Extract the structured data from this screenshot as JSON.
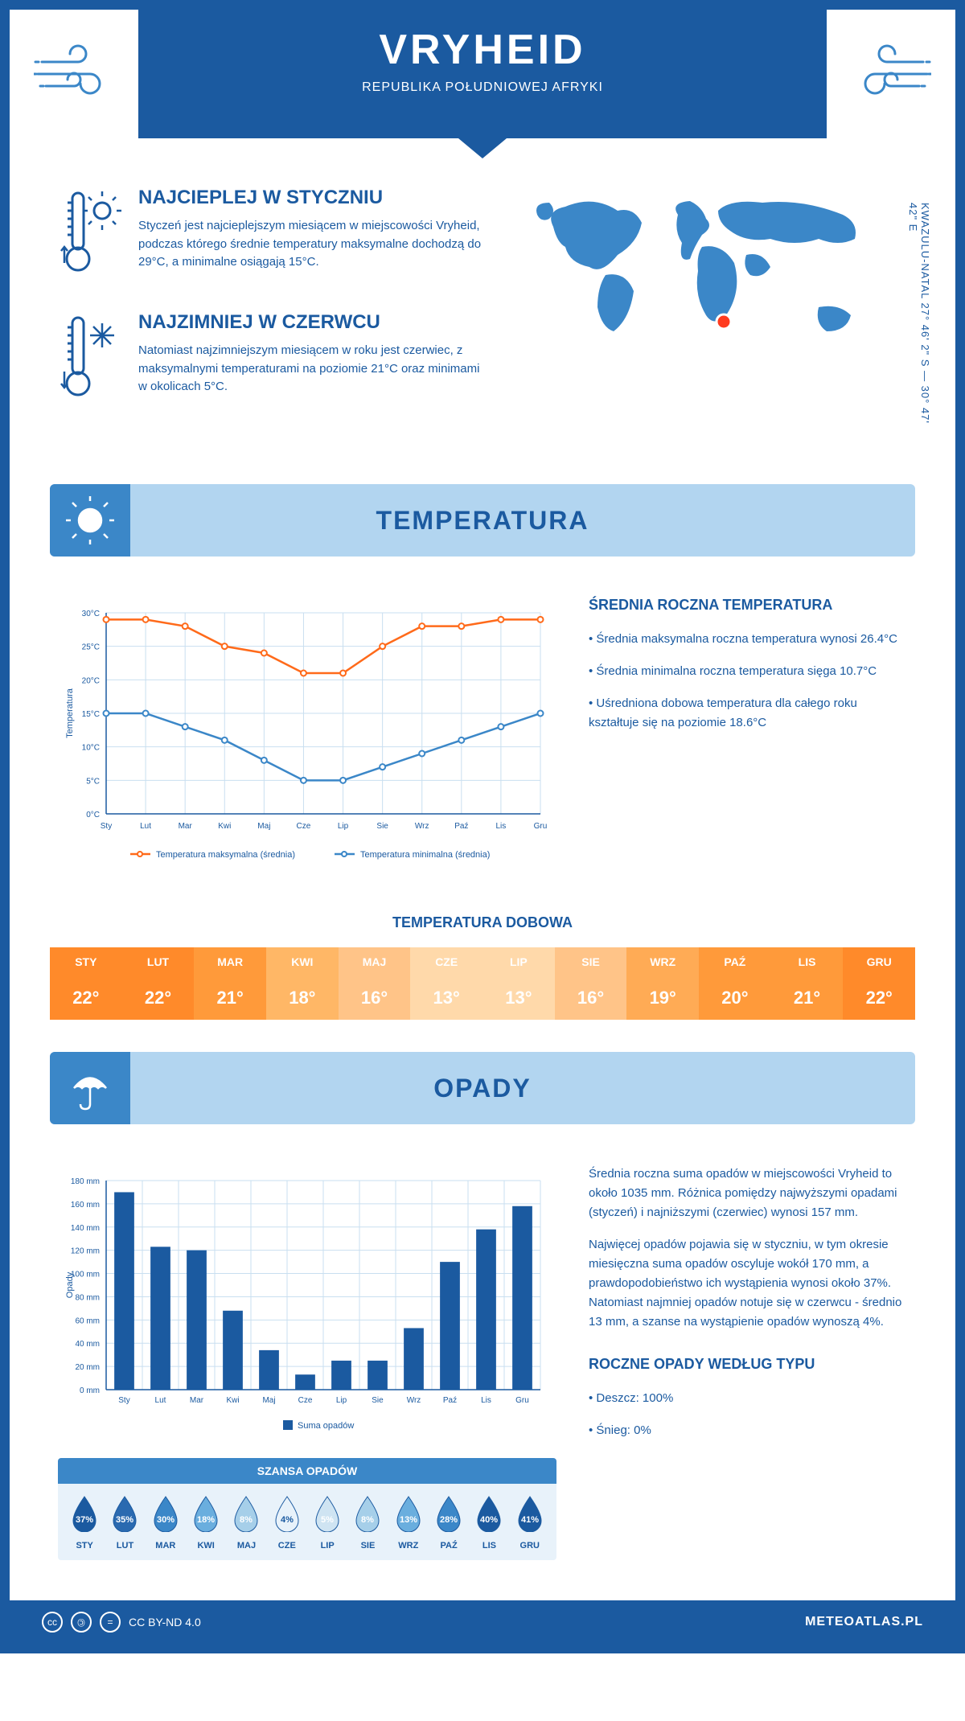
{
  "header": {
    "title": "VRYHEID",
    "subtitle": "REPUBLIKA POŁUDNIOWEJ AFRYKI"
  },
  "coords": "KWAZULU-NATAL    27° 46' 2\" S — 30° 47' 42\" E",
  "warmest": {
    "title": "NAJCIEPLEJ W STYCZNIU",
    "text": "Styczeń jest najcieplejszym miesiącem w miejscowości Vryheid, podczas którego średnie temperatury maksymalne dochodzą do 29°C, a minimalne osiągają 15°C."
  },
  "coldest": {
    "title": "NAJZIMNIEJ W CZERWCU",
    "text": "Natomiast najzimniejszym miesiącem w roku jest czerwiec, z maksymalnymi temperaturami na poziomie 21°C oraz minimami w okolicach 5°C."
  },
  "sections": {
    "temperature": "TEMPERATURA",
    "precipitation": "OPADY"
  },
  "temp_chart": {
    "type": "line",
    "months": [
      "Sty",
      "Lut",
      "Mar",
      "Kwi",
      "Maj",
      "Cze",
      "Lip",
      "Sie",
      "Wrz",
      "Paź",
      "Lis",
      "Gru"
    ],
    "series_max": {
      "label": "Temperatura maksymalna (średnia)",
      "color": "#ff6a1a",
      "values": [
        29,
        29,
        28,
        25,
        24,
        21,
        21,
        25,
        28,
        28,
        29,
        29
      ]
    },
    "series_min": {
      "label": "Temperatura minimalna (średnia)",
      "color": "#3b87c8",
      "values": [
        15,
        15,
        13,
        11,
        8,
        5,
        5,
        7,
        9,
        11,
        13,
        15
      ]
    },
    "ylabel": "Temperatura",
    "ylim": [
      0,
      30
    ],
    "ytick_step": 5,
    "yunit": "°C",
    "grid_color": "#c9dff0",
    "axis_color": "#1b5aa0",
    "label_fontsize": 11,
    "tick_fontsize": 10,
    "line_width": 2.5,
    "marker_size": 3.5,
    "background_color": "#ffffff"
  },
  "temp_text": {
    "title": "ŚREDNIA ROCZNA TEMPERATURA",
    "bullets": [
      "• Średnia maksymalna roczna temperatura wynosi 26.4°C",
      "• Średnia minimalna roczna temperatura sięga 10.7°C",
      "• Uśredniona dobowa temperatura dla całego roku kształtuje się na poziomie 18.6°C"
    ]
  },
  "daily_temp": {
    "title": "TEMPERATURA DOBOWA",
    "months": [
      "STY",
      "LUT",
      "MAR",
      "KWI",
      "MAJ",
      "CZE",
      "LIP",
      "SIE",
      "WRZ",
      "PAŹ",
      "LIS",
      "GRU"
    ],
    "values": [
      "22°",
      "22°",
      "21°",
      "18°",
      "16°",
      "13°",
      "13°",
      "16°",
      "19°",
      "20°",
      "21°",
      "22°"
    ],
    "header_colors": [
      "#ff8a2a",
      "#ff8a2a",
      "#ff9a3a",
      "#ffb766",
      "#ffc488",
      "#ffd9aa",
      "#ffd9aa",
      "#ffc488",
      "#ffab55",
      "#ff9a3a",
      "#ff9a3a",
      "#ff8a2a"
    ],
    "value_colors": [
      "#ff8a2a",
      "#ff8a2a",
      "#ff9a3a",
      "#ffb766",
      "#ffc488",
      "#ffd9aa",
      "#ffd9aa",
      "#ffc488",
      "#ffab55",
      "#ff9a3a",
      "#ff9a3a",
      "#ff8a2a"
    ],
    "text_color": "#ffffff"
  },
  "precip_chart": {
    "type": "bar",
    "months": [
      "Sty",
      "Lut",
      "Mar",
      "Kwi",
      "Maj",
      "Cze",
      "Lip",
      "Sie",
      "Wrz",
      "Paź",
      "Lis",
      "Gru"
    ],
    "values": [
      170,
      123,
      120,
      68,
      34,
      13,
      25,
      25,
      53,
      110,
      138,
      158
    ],
    "bar_color": "#1b5aa0",
    "ylabel": "Opady",
    "ylim": [
      0,
      180
    ],
    "ytick_step": 20,
    "yunit": " mm",
    "grid_color": "#c9dff0",
    "axis_color": "#1b5aa0",
    "label_fontsize": 11,
    "tick_fontsize": 10,
    "bar_width": 0.55,
    "background_color": "#ffffff",
    "legend_label": "Suma opadów"
  },
  "precip_text": {
    "p1": "Średnia roczna suma opadów w miejscowości Vryheid to około 1035 mm. Różnica pomiędzy najwyższymi opadami (styczeń) i najniższymi (czerwiec) wynosi 157 mm.",
    "p2": "Najwięcej opadów pojawia się w styczniu, w tym okresie miesięczna suma opadów oscyluje wokół 170 mm, a prawdopodobieństwo ich wystąpienia wynosi około 37%. Natomiast najmniej opadów notuje się w czerwcu - średnio 13 mm, a szanse na wystąpienie opadów wynoszą 4%."
  },
  "rain_chance": {
    "title": "SZANSA OPADÓW",
    "months": [
      "STY",
      "LUT",
      "MAR",
      "KWI",
      "MAJ",
      "CZE",
      "LIP",
      "SIE",
      "WRZ",
      "PAŹ",
      "LIS",
      "GRU"
    ],
    "values": [
      "37%",
      "35%",
      "30%",
      "18%",
      "8%",
      "4%",
      "5%",
      "8%",
      "13%",
      "28%",
      "40%",
      "41%"
    ],
    "drop_colors": [
      "#1b5aa0",
      "#2a6ab0",
      "#3b87c8",
      "#6aaede",
      "#a6cfe9",
      "#e8f2fa",
      "#cfe4f2",
      "#a6cfe9",
      "#6aaede",
      "#3b87c8",
      "#1b5aa0",
      "#1b5aa0"
    ]
  },
  "precip_type": {
    "title": "ROCZNE OPADY WEDŁUG TYPU",
    "bullets": [
      "• Deszcz: 100%",
      "• Śnieg: 0%"
    ]
  },
  "footer": {
    "license": "CC BY-ND 4.0",
    "site": "METEOATLAS.PL"
  },
  "colors": {
    "primary": "#1b5aa0",
    "light": "#b2d5f0",
    "mid": "#3b87c8",
    "orange": "#ff6a1a"
  }
}
